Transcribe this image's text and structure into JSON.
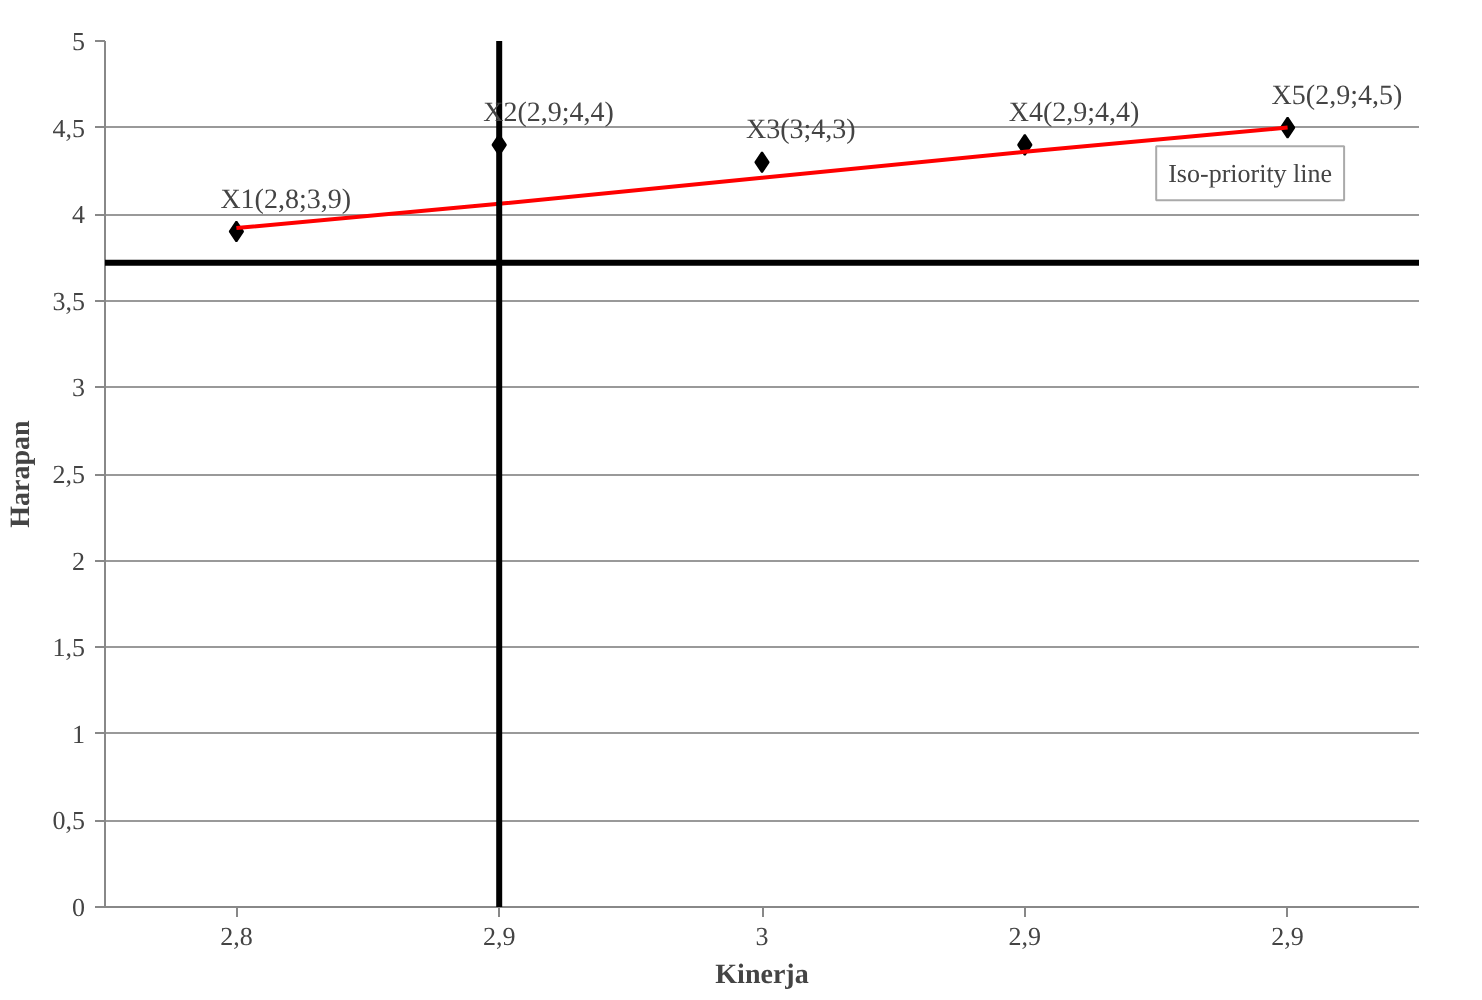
{
  "chart_data": {
    "type": "scatter",
    "xlabel": "Kinerja",
    "ylabel": "Harapan",
    "categories": [
      "2,8",
      "2,9",
      "3",
      "2,9",
      "2,9"
    ],
    "series": [
      {
        "color": "#000000",
        "marker": "diamond",
        "values": [
          3.9,
          4.4,
          4.3,
          4.4,
          4.5
        ],
        "value_labels": [
          "X1(2,8;3,9)",
          "X2(2,9;4,4)",
          "X3(3;4,3)",
          "X4(2,9;4,4)",
          "X5(2,9;4,5)"
        ]
      },
      {
        "type": "line",
        "name": "Iso-priority line",
        "color": "#ff0000",
        "values": [
          3.92,
          4.06,
          4.21,
          4.36,
          4.5
        ]
      }
    ],
    "ylim": [
      0,
      5
    ],
    "yticks": [
      0,
      {
        "value": 0.5,
        "label": "0,5"
      },
      1,
      {
        "value": 1.5,
        "label": "1,5"
      },
      2,
      {
        "value": 2.5,
        "label": "2,5"
      },
      3,
      {
        "value": 3.5,
        "label": "3,5"
      },
      4,
      {
        "value": 4.5,
        "label": "4,5"
      },
      5
    ],
    "ref_lines": [
      {
        "axis": "y",
        "value": 3.72,
        "color": "#000000"
      },
      {
        "axis": "x",
        "value": "2,9",
        "color": "#000000"
      }
    ],
    "grid": "y",
    "legend": false
  }
}
